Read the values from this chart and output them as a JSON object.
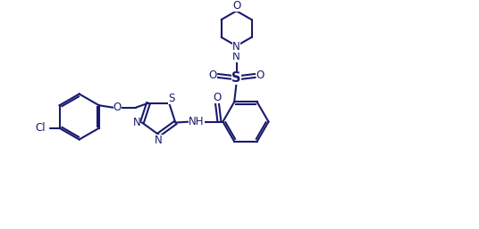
{
  "background_color": "#ffffff",
  "line_color": "#1a1a6e",
  "line_width": 1.5,
  "font_size": 8.5,
  "fig_width": 5.36,
  "fig_height": 2.57,
  "dpi": 100,
  "xlim": [
    0,
    10
  ],
  "ylim": [
    0,
    5
  ]
}
